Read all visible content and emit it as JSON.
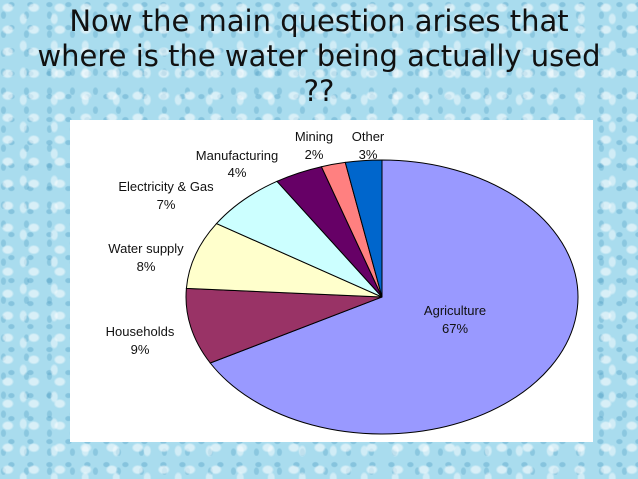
{
  "slide": {
    "title_lines": [
      "Now the main question arises that",
      "where is the water being actually used",
      "??"
    ]
  },
  "chart_data": {
    "type": "pie",
    "categories": [
      "Agriculture",
      "Households",
      "Water supply",
      "Electricity & Gas",
      "Manufacturing",
      "Mining",
      "Other"
    ],
    "values": [
      67,
      9,
      8,
      7,
      4,
      2,
      3
    ],
    "value_labels": [
      "67%",
      "9%",
      "8%",
      "7%",
      "4%",
      "2%",
      "3%"
    ],
    "colors": [
      "#9999ff",
      "#993366",
      "#ffffcc",
      "#ccffff",
      "#660066",
      "#ff8080",
      "#0066cc"
    ],
    "start_angle_deg": 0,
    "direction": "clockwise"
  }
}
